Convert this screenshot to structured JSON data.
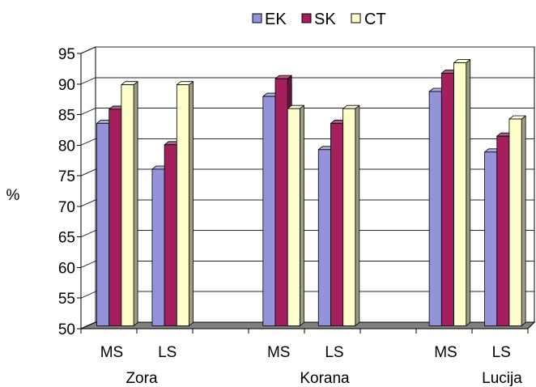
{
  "chart_data": {
    "type": "bar",
    "variant": "3d-clustered-column",
    "categories": [
      "MS",
      "LS",
      "",
      "MS",
      "LS",
      "",
      "MS",
      "LS"
    ],
    "category_groups": [
      {
        "label": "Zora",
        "category_indices": [
          0,
          1
        ]
      },
      {
        "label": "Korana",
        "category_indices": [
          3,
          4
        ]
      },
      {
        "label": "Lucija",
        "category_indices": [
          6,
          7
        ]
      }
    ],
    "series": [
      {
        "name": "EK",
        "color": "#9393DB",
        "values": [
          83.1,
          75.6,
          null,
          87.5,
          78.8,
          null,
          88.3,
          78.4
        ]
      },
      {
        "name": "SK",
        "color": "#A31F5E",
        "values": [
          85.4,
          79.6,
          null,
          90.4,
          83.1,
          null,
          91.3,
          81.0
        ]
      },
      {
        "name": "CT",
        "color": "#FFFFCC",
        "values": [
          89.4,
          89.4,
          null,
          85.5,
          85.5,
          null,
          93.0,
          83.8
        ]
      }
    ],
    "ylabel": "%",
    "ylim": [
      50,
      95
    ],
    "yticks": [
      50,
      55,
      60,
      65,
      70,
      75,
      80,
      85,
      90,
      95
    ],
    "grid": true,
    "legend": "top"
  }
}
